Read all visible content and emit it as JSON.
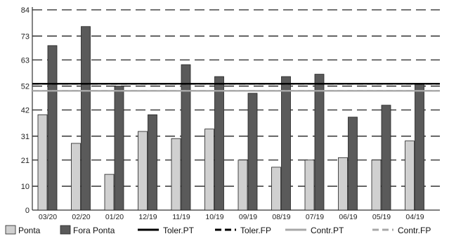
{
  "chart_data": {
    "type": "bar",
    "categories": [
      "03/20",
      "02/20",
      "01/20",
      "12/19",
      "11/19",
      "10/19",
      "09/19",
      "08/19",
      "07/19",
      "06/19",
      "05/19",
      "04/19"
    ],
    "series": [
      {
        "name": "Ponta",
        "values": [
          40,
          28,
          15,
          33,
          30,
          34,
          21,
          18,
          21,
          22,
          21,
          29
        ],
        "color": "#d0d0d0"
      },
      {
        "name": "Fora Ponta",
        "values": [
          69,
          77,
          52,
          40,
          61,
          56,
          49,
          56,
          57,
          39,
          44,
          53
        ],
        "color": "#5a5a5a"
      }
    ],
    "reference_lines": [
      {
        "name": "Toler.PT",
        "value": 53,
        "style": "solid",
        "color": "#000000"
      },
      {
        "name": "Toler.FP",
        "value": 53,
        "style": "dashed",
        "color": "#000000"
      },
      {
        "name": "Contr.PT",
        "value": 50,
        "style": "solid",
        "color": "#a8a8a8"
      },
      {
        "name": "Contr.FP",
        "value": 50,
        "style": "dashed",
        "color": "#a8a8a8"
      }
    ],
    "yticks": [
      0,
      10,
      21,
      31,
      42,
      52,
      63,
      73,
      84
    ],
    "ylim": [
      0,
      84
    ],
    "grid": "dashed horizontal",
    "legend_position": "bottom",
    "title": "",
    "xlabel": "",
    "ylabel": ""
  }
}
